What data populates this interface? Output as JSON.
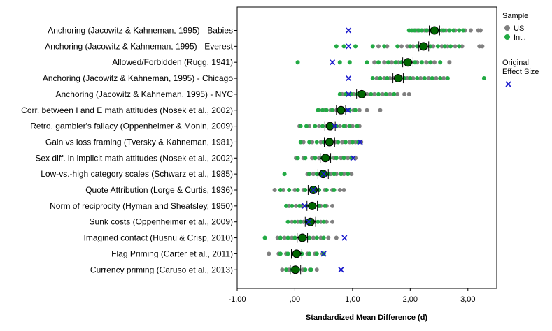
{
  "chart_data": {
    "type": "scatter",
    "xlabel": "Standardized Mean Difference (d)",
    "xlim": [
      -1.0,
      3.5
    ],
    "x_ticks": [
      {
        "value": -1.0,
        "label": "-1,00"
      },
      {
        "value": 0.0,
        "label": ",00"
      },
      {
        "value": 1.0,
        "label": "1,00"
      },
      {
        "value": 2.0,
        "label": "2,00"
      },
      {
        "value": 3.0,
        "label": "3,00"
      }
    ],
    "reference_line": 0.0,
    "legend": {
      "placement": "right",
      "sample_title": "Sample",
      "sample_entries": [
        {
          "label": "US",
          "color": "#808080"
        },
        {
          "label": "Intl.",
          "color": "#22aa44"
        }
      ],
      "original_title_line1": "Original",
      "original_title_line2": "Effect Size",
      "original_marker_color": "#1a1acc"
    },
    "colors": {
      "us": "#808080",
      "intl": "#22aa44",
      "aggregate": "#006600",
      "original": "#1a1acc",
      "ci": "#000000"
    },
    "effects": [
      {
        "label": "Anchoring (Jacowitz & Kahneman, 1995) - Babies",
        "aggregate": 2.42,
        "ci": [
          2.33,
          2.51
        ],
        "original": 0.93,
        "us": [
          2.12,
          2.25,
          2.38,
          2.55,
          2.78,
          2.95,
          3.05,
          3.18,
          3.22,
          2.05,
          2.3,
          2.62
        ],
        "intl": [
          1.98,
          2.02,
          2.08,
          2.15,
          2.2,
          2.28,
          2.35,
          2.45,
          2.5,
          2.58,
          2.68,
          2.75,
          2.85,
          2.92
        ]
      },
      {
        "label": "Anchoring (Jacowitz & Kahneman, 1995) - Everest",
        "aggregate": 2.23,
        "ci": [
          2.15,
          2.32
        ],
        "original": 0.93,
        "us": [
          1.45,
          1.6,
          1.85,
          1.95,
          2.05,
          2.18,
          2.3,
          2.4,
          2.55,
          2.65,
          2.78,
          2.9,
          3.2,
          3.25
        ],
        "intl": [
          0.72,
          0.85,
          1.05,
          1.35,
          1.55,
          1.78,
          2.0,
          2.12,
          2.25,
          2.35,
          2.48,
          2.6,
          2.7,
          2.85
        ]
      },
      {
        "label": "Allowed/Forbidden (Rugg, 1941)",
        "aggregate": 1.96,
        "ci": [
          1.87,
          2.05
        ],
        "original": 0.65,
        "us": [
          1.38,
          1.55,
          1.68,
          1.8,
          1.92,
          2.02,
          2.12,
          2.28,
          2.42,
          2.68
        ],
        "intl": [
          0.05,
          0.78,
          0.95,
          1.25,
          1.45,
          1.62,
          1.75,
          1.85,
          2.08,
          2.2,
          2.35,
          2.52
        ]
      },
      {
        "label": "Anchoring (Jacowitz & Kahneman, 1995) - Chicago",
        "aggregate": 1.79,
        "ci": [
          1.7,
          1.88
        ],
        "original": 0.93,
        "us": [
          1.42,
          1.55,
          1.65,
          1.72,
          1.85,
          1.95,
          2.05,
          2.18,
          2.32,
          2.45,
          2.58
        ],
        "intl": [
          1.35,
          1.48,
          1.6,
          1.78,
          1.9,
          2.0,
          2.12,
          2.25,
          2.38,
          2.52,
          2.65,
          3.28
        ]
      },
      {
        "label": "Anchoring (Jacowitz & Kahneman, 1995) - NYC",
        "aggregate": 1.16,
        "ci": [
          1.07,
          1.25
        ],
        "original": 0.93,
        "us": [
          0.82,
          0.92,
          1.02,
          1.12,
          1.25,
          1.38,
          1.52,
          1.65,
          1.78,
          1.9,
          1.98
        ],
        "intl": [
          0.78,
          0.88,
          0.98,
          1.08,
          1.2,
          1.32,
          1.45,
          1.58,
          1.72
        ]
      },
      {
        "label": "Corr. between I and E math attitudes (Nosek et al., 2002)",
        "aggregate": 0.8,
        "ci": [
          0.72,
          0.88
        ],
        "original": 0.92,
        "us": [
          0.42,
          0.52,
          0.62,
          0.72,
          0.82,
          0.92,
          1.02,
          1.12,
          1.25,
          1.48
        ],
        "intl": [
          0.4,
          0.48,
          0.55,
          0.65,
          0.75,
          0.85,
          0.95,
          1.05
        ]
      },
      {
        "label": "Retro. gambler's fallacy (Oppenheimer & Monin, 2009)",
        "aggregate": 0.61,
        "ci": [
          0.52,
          0.7
        ],
        "original": 0.69,
        "us": [
          0.08,
          0.25,
          0.42,
          0.55,
          0.68,
          0.78,
          0.88,
          1.0,
          1.12
        ],
        "intl": [
          0.1,
          0.2,
          0.35,
          0.48,
          0.6,
          0.72,
          0.85,
          0.95,
          1.08
        ]
      },
      {
        "label": "Gain vs loss framing (Tversky & Kahneman, 1981)",
        "aggregate": 0.6,
        "ci": [
          0.51,
          0.69
        ],
        "original": 1.13,
        "us": [
          0.15,
          0.3,
          0.45,
          0.58,
          0.7,
          0.82,
          0.95,
          1.05,
          1.15
        ],
        "intl": [
          0.1,
          0.25,
          0.38,
          0.5,
          0.62,
          0.75,
          0.88,
          1.0,
          1.1
        ]
      },
      {
        "label": "Sex diff. in implicit math attitudes (Nosek et al., 2002)",
        "aggregate": 0.53,
        "ci": [
          0.44,
          0.62
        ],
        "original": 1.01,
        "us": [
          0.02,
          0.15,
          0.3,
          0.42,
          0.55,
          0.68,
          0.8,
          0.92,
          1.05
        ],
        "intl": [
          0.05,
          0.18,
          0.35,
          0.48,
          0.6,
          0.72,
          0.85,
          0.98
        ]
      },
      {
        "label": "Low-vs.-high category scales (Schwarz et al., 1985)",
        "aggregate": 0.49,
        "ci": [
          0.4,
          0.58
        ],
        "original": 0.5,
        "us": [
          0.22,
          0.32,
          0.42,
          0.52,
          0.62,
          0.72,
          0.85,
          0.98
        ],
        "intl": [
          -0.18,
          0.25,
          0.38,
          0.48,
          0.58,
          0.68,
          0.8,
          0.92
        ]
      },
      {
        "label": "Quote Attribution (Lorge & Curtis, 1936)",
        "aggregate": 0.32,
        "ci": [
          0.23,
          0.41
        ],
        "original": 0.32,
        "us": [
          -0.35,
          -0.2,
          0.0,
          0.15,
          0.28,
          0.4,
          0.52,
          0.65,
          0.78,
          0.85
        ],
        "intl": [
          -0.25,
          -0.1,
          0.05,
          0.18,
          0.3,
          0.42,
          0.55,
          0.68
        ]
      },
      {
        "label": "Norm of reciprocity (Hyman and Sheatsley, 1950)",
        "aggregate": 0.3,
        "ci": [
          0.21,
          0.39
        ],
        "original": 0.17,
        "us": [
          -0.1,
          0.02,
          0.12,
          0.25,
          0.35,
          0.45,
          0.55,
          0.65
        ],
        "intl": [
          -0.15,
          -0.05,
          0.08,
          0.2,
          0.32,
          0.42,
          0.52
        ]
      },
      {
        "label": "Sunk costs (Oppenheimer et al., 2009)",
        "aggregate": 0.27,
        "ci": [
          0.18,
          0.36
        ],
        "original": 0.24,
        "us": [
          -0.05,
          0.05,
          0.15,
          0.25,
          0.35,
          0.45,
          0.55,
          0.65
        ],
        "intl": [
          -0.12,
          0.0,
          0.1,
          0.2,
          0.3,
          0.4,
          0.5
        ]
      },
      {
        "label": "Imagined contact (Husnu & Crisp, 2010)",
        "aggregate": 0.13,
        "ci": [
          0.04,
          0.22
        ],
        "original": 0.86,
        "us": [
          -0.3,
          -0.18,
          -0.05,
          0.08,
          0.2,
          0.32,
          0.45,
          0.58,
          0.72
        ],
        "intl": [
          -0.52,
          -0.25,
          -0.12,
          0.0,
          0.12,
          0.25,
          0.38,
          0.5
        ]
      },
      {
        "label": "Flag Priming (Carter et al., 2011)",
        "aggregate": 0.03,
        "ci": [
          -0.06,
          0.12
        ],
        "original": 0.5,
        "us": [
          -0.45,
          -0.28,
          -0.15,
          -0.02,
          0.1,
          0.22,
          0.35,
          0.48
        ],
        "intl": [
          -0.25,
          -0.12,
          0.0,
          0.12,
          0.25,
          0.38,
          0.5
        ]
      },
      {
        "label": "Currency priming (Caruso et al., 2013)",
        "aggregate": 0.01,
        "ci": [
          -0.08,
          0.1
        ],
        "original": 0.8,
        "us": [
          -0.22,
          -0.1,
          0.02,
          0.14,
          0.26,
          0.38
        ],
        "intl": [
          -0.15,
          -0.05,
          0.06,
          0.18,
          0.28
        ]
      }
    ]
  }
}
